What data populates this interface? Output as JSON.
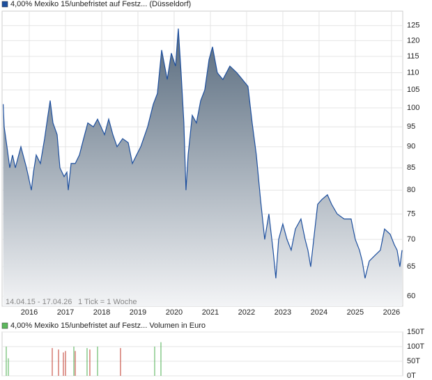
{
  "chart_data": [
    {
      "type": "area",
      "series": [
        {
          "name": "4,00% Mexiko 15/unbefristet auf Festz... (Düsseldorf)",
          "color": "#1d4f9e",
          "x": [
            2015.28,
            2015.308,
            2015.385,
            2015.462,
            2015.538,
            2015.615,
            2015.769,
            2015.923,
            2016.058,
            2016.115,
            2016.192,
            2016.308,
            2016.423,
            2016.5,
            2016.577,
            2016.654,
            2016.769,
            2016.846,
            2016.962,
            2017.038,
            2017.077,
            2017.154,
            2017.269,
            2017.385,
            2017.5,
            2017.615,
            2017.769,
            2017.885,
            2018.077,
            2018.192,
            2018.308,
            2018.423,
            2018.577,
            2018.731,
            2018.846,
            2018.962,
            2019.077,
            2019.269,
            2019.423,
            2019.538,
            2019.654,
            2019.808,
            2019.923,
            2020.038,
            2020.115,
            2020.192,
            2020.269,
            2020.327,
            2020.385,
            2020.5,
            2020.615,
            2020.731,
            2020.846,
            2020.962,
            2021.058,
            2021.192,
            2021.346,
            2021.538,
            2021.731,
            2021.885,
            2022.038,
            2022.154,
            2022.269,
            2022.385,
            2022.5,
            2022.615,
            2022.731,
            2022.808,
            2022.885,
            2023.0,
            2023.115,
            2023.231,
            2023.346,
            2023.5,
            2023.615,
            2023.692,
            2023.769,
            2023.885,
            2023.962,
            2024.077,
            2024.231,
            2024.346,
            2024.5,
            2024.692,
            2024.885,
            2025.0,
            2025.115,
            2025.192,
            2025.269,
            2025.385,
            2025.538,
            2025.692,
            2025.808,
            2025.962,
            2026.077,
            2026.154,
            2026.231,
            2026.29
          ],
          "values": [
            101,
            95,
            90,
            85,
            88,
            85,
            90,
            85,
            80,
            84,
            88,
            86,
            92,
            97,
            102,
            96,
            93,
            85,
            83,
            84,
            80,
            86,
            86,
            88,
            92,
            96,
            95,
            97,
            93,
            97,
            93,
            90,
            92,
            91,
            86,
            88,
            90,
            95,
            101,
            104,
            117,
            108,
            116,
            112,
            124,
            110,
            96,
            80,
            88,
            98,
            96,
            102,
            105,
            114,
            118,
            110,
            108,
            112,
            110,
            108,
            106,
            96,
            88,
            78,
            70,
            75,
            68,
            63,
            70,
            73,
            70,
            68,
            72,
            74,
            70,
            68,
            65,
            72,
            77,
            78,
            79,
            77,
            75,
            74,
            74,
            70,
            68,
            66,
            63,
            66,
            67,
            68,
            72,
            71,
            69,
            68,
            65,
            68
          ]
        }
      ],
      "area_colors": [
        "#56697c",
        "#f3f4f6"
      ],
      "xlim": [
        2015.25,
        2026.31
      ],
      "xticks": [
        2016,
        2017,
        2018,
        2019,
        2020,
        2021,
        2022,
        2023,
        2024,
        2025,
        2026
      ],
      "ylim": [
        58.4,
        130
      ],
      "yticks": [
        60,
        65,
        70,
        75,
        80,
        85,
        90,
        95,
        100,
        105,
        110,
        115,
        120,
        125
      ],
      "ylog": true,
      "grid": true,
      "notes": [
        "14.04.15 - 17.04.26",
        "1 Tick = 1 Woche"
      ]
    },
    {
      "type": "bar",
      "series": [
        {
          "name": "4,00% Mexiko 15/unbefristet auf Festz... Volumen in Euro",
          "color": "#5cb85c",
          "x": [
            2015.365,
            2015.423,
            2016.635,
            2016.808,
            2016.942,
            2017.0,
            2017.231,
            2017.269,
            2017.596,
            2017.673,
            2017.885,
            2018.519,
            2019.462,
            2019.635
          ],
          "values": [
            100000,
            60000,
            95000,
            90000,
            80000,
            85000,
            100000,
            85000,
            95000,
            90000,
            100000,
            95000,
            100000,
            115000
          ],
          "colors": [
            "#4caf50",
            "#4caf50",
            "#c0392b",
            "#c0392b",
            "#c0392b",
            "#c0392b",
            "#4caf50",
            "#c0392b",
            "#4caf50",
            "#c0392b",
            "#4caf50",
            "#c0392b",
            "#4caf50",
            "#4caf50"
          ]
        }
      ],
      "xlim": [
        2015.25,
        2026.31
      ],
      "ylim": [
        0,
        150000
      ],
      "yticks": [
        {
          "value": 0,
          "label": "0T"
        },
        {
          "value": 50000,
          "label": "50T"
        },
        {
          "value": 100000,
          "label": "100T"
        },
        {
          "value": 150000,
          "label": "150T"
        }
      ],
      "grid": true
    }
  ]
}
